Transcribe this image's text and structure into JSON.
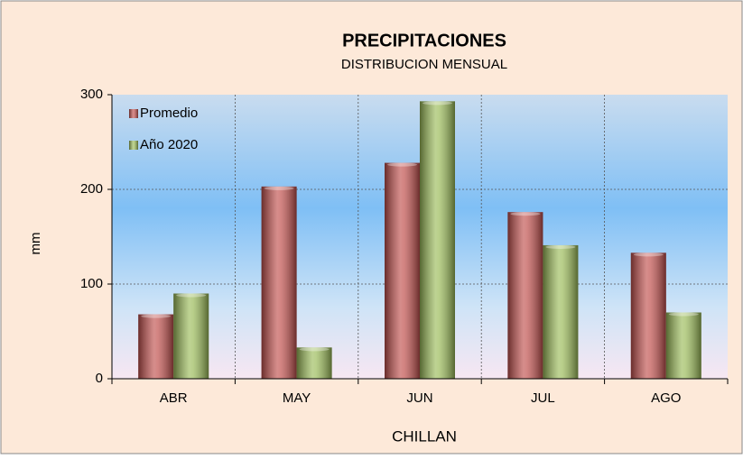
{
  "chart_data": {
    "type": "bar",
    "title": "PRECIPITACIONES",
    "subtitle": "DISTRIBUCION MENSUAL",
    "x_label": "CHILLAN",
    "y_label": "mm",
    "categories": [
      "ABR",
      "MAY",
      "JUN",
      "JUL",
      "AGO"
    ],
    "series": [
      {
        "name": "Promedio",
        "color": "#c0504d",
        "values": [
          68,
          203,
          228,
          176,
          133
        ]
      },
      {
        "name": "Año 2020",
        "color": "#9bbb59",
        "values": [
          90,
          33,
          293,
          141,
          70
        ]
      }
    ],
    "ylim": [
      0,
      300
    ],
    "yticks": [
      0,
      100,
      200,
      300
    ],
    "grid": true,
    "legend": "top-left"
  }
}
